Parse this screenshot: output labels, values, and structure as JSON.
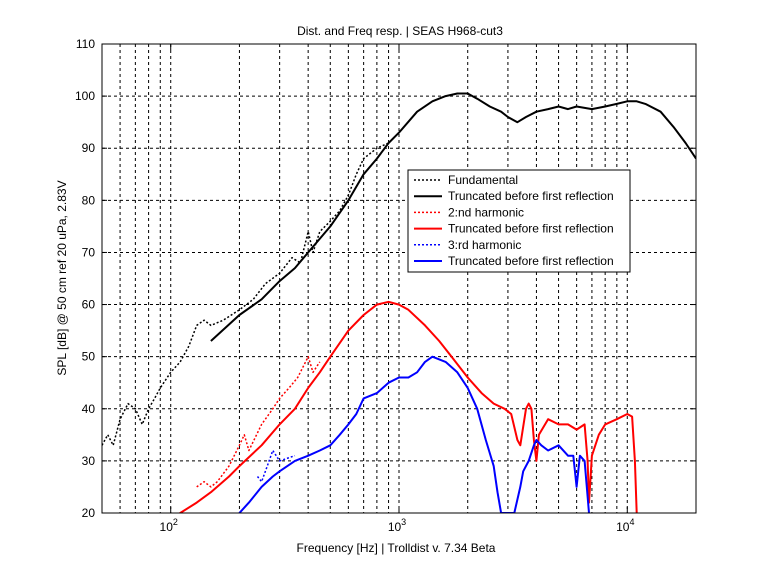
{
  "chart_data": {
    "type": "line",
    "title": "Dist. and Freq resp.  | SEAS H968-cut3",
    "xlabel": "Frequency [Hz] | Trolldist v. 7.34 Beta",
    "ylabel": "SPL [dB] @ 50 cm ref 20 uPa, 2.83V",
    "x_scale": "log",
    "xlim": [
      50,
      20000
    ],
    "ylim": [
      20,
      110
    ],
    "x_ticks": [
      {
        "value": 100,
        "base": "10",
        "exp": "2"
      },
      {
        "value": 1000,
        "base": "10",
        "exp": "3"
      },
      {
        "value": 10000,
        "base": "10",
        "exp": "4"
      }
    ],
    "y_ticks": [
      "20",
      "30",
      "40",
      "50",
      "60",
      "70",
      "80",
      "90",
      "100",
      "110"
    ],
    "grid": true,
    "legend_position": "center-right",
    "series": [
      {
        "name": "Fundamental",
        "color": "#000000",
        "style": "dotted",
        "points": [
          [
            50,
            33
          ],
          [
            53,
            35
          ],
          [
            56,
            33
          ],
          [
            60,
            38
          ],
          [
            65,
            41
          ],
          [
            70,
            40
          ],
          [
            75,
            37
          ],
          [
            80,
            40
          ],
          [
            85,
            42
          ],
          [
            90,
            44
          ],
          [
            100,
            47
          ],
          [
            110,
            49
          ],
          [
            120,
            52
          ],
          [
            130,
            56
          ],
          [
            140,
            57
          ],
          [
            150,
            56
          ],
          [
            170,
            57
          ],
          [
            200,
            59
          ],
          [
            230,
            61
          ],
          [
            260,
            64
          ],
          [
            300,
            66
          ],
          [
            340,
            69
          ],
          [
            370,
            68
          ],
          [
            400,
            74
          ],
          [
            420,
            70
          ],
          [
            450,
            74
          ],
          [
            500,
            76
          ],
          [
            550,
            78
          ],
          [
            600,
            81
          ],
          [
            650,
            85
          ],
          [
            700,
            88
          ],
          [
            800,
            90
          ],
          [
            900,
            91
          ]
        ]
      },
      {
        "name": "Truncated before first reflection",
        "color": "#000000",
        "style": "solid",
        "points": [
          [
            150,
            53
          ],
          [
            200,
            58
          ],
          [
            250,
            61
          ],
          [
            300,
            64.5
          ],
          [
            350,
            67
          ],
          [
            400,
            70
          ],
          [
            500,
            75
          ],
          [
            600,
            80
          ],
          [
            700,
            85
          ],
          [
            800,
            88
          ],
          [
            900,
            91
          ],
          [
            1000,
            93
          ],
          [
            1200,
            97
          ],
          [
            1400,
            99
          ],
          [
            1600,
            100
          ],
          [
            1800,
            100.5
          ],
          [
            2000,
            100.5
          ],
          [
            2200,
            99.5
          ],
          [
            2500,
            98
          ],
          [
            2800,
            97
          ],
          [
            3000,
            96
          ],
          [
            3300,
            95
          ],
          [
            3600,
            96
          ],
          [
            4000,
            97
          ],
          [
            4500,
            97.5
          ],
          [
            5000,
            98
          ],
          [
            5500,
            97.5
          ],
          [
            6000,
            98
          ],
          [
            7000,
            97.5
          ],
          [
            8000,
            98
          ],
          [
            9000,
            98.5
          ],
          [
            10000,
            99
          ],
          [
            11000,
            99
          ],
          [
            12000,
            98.5
          ],
          [
            14000,
            97
          ],
          [
            16000,
            94
          ],
          [
            18000,
            91
          ],
          [
            20000,
            88
          ]
        ]
      },
      {
        "name": "2:nd harmonic",
        "color": "#ff0000",
        "style": "dotted",
        "points": [
          [
            130,
            25
          ],
          [
            140,
            26
          ],
          [
            150,
            25
          ],
          [
            160,
            26
          ],
          [
            180,
            29
          ],
          [
            200,
            33
          ],
          [
            210,
            35
          ],
          [
            220,
            32
          ],
          [
            250,
            37
          ],
          [
            280,
            40
          ],
          [
            300,
            42
          ],
          [
            330,
            44
          ],
          [
            360,
            46
          ],
          [
            400,
            50
          ],
          [
            420,
            47
          ],
          [
            450,
            49
          ]
        ]
      },
      {
        "name": "Truncated before first reflection",
        "color": "#ff0000",
        "style": "solid",
        "points": [
          [
            100,
            19
          ],
          [
            110,
            20
          ],
          [
            130,
            22
          ],
          [
            150,
            24
          ],
          [
            180,
            27
          ],
          [
            200,
            29
          ],
          [
            250,
            33
          ],
          [
            300,
            37
          ],
          [
            350,
            40
          ],
          [
            400,
            44
          ],
          [
            450,
            47
          ],
          [
            500,
            50
          ],
          [
            600,
            55
          ],
          [
            700,
            58
          ],
          [
            800,
            60
          ],
          [
            900,
            60.5
          ],
          [
            1000,
            60
          ],
          [
            1100,
            59
          ],
          [
            1300,
            56
          ],
          [
            1500,
            53
          ],
          [
            1700,
            50
          ],
          [
            2000,
            46
          ],
          [
            2300,
            43
          ],
          [
            2600,
            41
          ],
          [
            2900,
            40
          ],
          [
            3100,
            39
          ],
          [
            3300,
            34
          ],
          [
            3400,
            33
          ],
          [
            3600,
            40
          ],
          [
            3700,
            41
          ],
          [
            3800,
            40
          ],
          [
            3900,
            34
          ],
          [
            4000,
            30
          ],
          [
            4100,
            35
          ],
          [
            4500,
            38
          ],
          [
            5000,
            37
          ],
          [
            5500,
            37
          ],
          [
            6000,
            36
          ],
          [
            6500,
            37
          ],
          [
            6700,
            30
          ],
          [
            6800,
            22
          ],
          [
            7000,
            31
          ],
          [
            7500,
            35
          ],
          [
            8000,
            37
          ],
          [
            9000,
            38
          ],
          [
            10000,
            39
          ],
          [
            10500,
            38.5
          ],
          [
            10800,
            30
          ],
          [
            11000,
            20
          ]
        ]
      },
      {
        "name": "3:rd harmonic",
        "color": "#0000ff",
        "style": "dotted",
        "points": [
          [
            240,
            27
          ],
          [
            250,
            26
          ],
          [
            260,
            28
          ],
          [
            280,
            32
          ],
          [
            300,
            30
          ],
          [
            350,
            31
          ]
        ]
      },
      {
        "name": "Truncated before first reflection",
        "color": "#0000ff",
        "style": "solid",
        "points": [
          [
            200,
            20
          ],
          [
            220,
            22
          ],
          [
            250,
            25
          ],
          [
            280,
            27
          ],
          [
            300,
            28
          ],
          [
            350,
            30
          ],
          [
            400,
            31
          ],
          [
            450,
            32
          ],
          [
            500,
            33
          ],
          [
            550,
            35
          ],
          [
            600,
            37
          ],
          [
            650,
            39
          ],
          [
            700,
            42
          ],
          [
            800,
            43
          ],
          [
            900,
            45
          ],
          [
            1000,
            46
          ],
          [
            1100,
            46
          ],
          [
            1200,
            47
          ],
          [
            1300,
            49
          ],
          [
            1400,
            50
          ],
          [
            1600,
            49
          ],
          [
            1800,
            47
          ],
          [
            2000,
            44
          ],
          [
            2200,
            40
          ],
          [
            2400,
            34
          ],
          [
            2600,
            29
          ],
          [
            2700,
            24
          ],
          [
            2800,
            20
          ],
          [
            3200,
            20
          ],
          [
            3400,
            25
          ],
          [
            3500,
            28
          ],
          [
            3700,
            30
          ],
          [
            3900,
            33
          ],
          [
            4000,
            34
          ],
          [
            4200,
            33
          ],
          [
            4500,
            32
          ],
          [
            5000,
            33
          ],
          [
            5500,
            31
          ],
          [
            5800,
            31
          ],
          [
            6000,
            25
          ],
          [
            6200,
            31
          ],
          [
            6500,
            30
          ],
          [
            6800,
            20
          ]
        ]
      }
    ]
  }
}
